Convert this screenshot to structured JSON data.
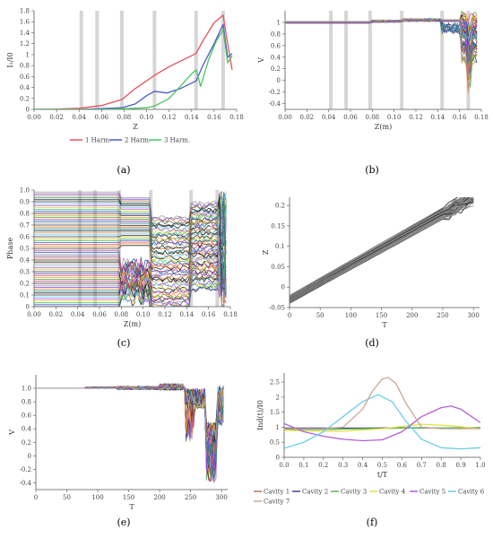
{
  "figure": {
    "panel_labels": [
      "(a)",
      "(b)",
      "(c)",
      "(d)",
      "(e)",
      "(f)"
    ]
  },
  "chart_data": [
    {
      "id": "a",
      "type": "line",
      "xlabel": "Z",
      "ylabel": "I₁/I0",
      "xlim": [
        0,
        0.18
      ],
      "ylim": [
        0,
        1.8
      ],
      "xticks": [
        "0.00",
        "0.02",
        "0.04",
        "0.06",
        "0.08",
        "0.10",
        "0.12",
        "0.14",
        "0.16",
        "0.18"
      ],
      "yticks": [
        "0",
        "0.2",
        "0.4",
        "0.6",
        "0.8",
        "1",
        "1.2",
        "1.4",
        "1.6",
        "1.8"
      ],
      "cavity_bands": [
        0.042,
        0.056,
        0.078,
        0.107,
        0.144,
        0.168
      ],
      "legend_position": "bottom",
      "series": [
        {
          "name": "1 Harm.",
          "color": "#e8505b",
          "x": [
            0,
            0.02,
            0.04,
            0.06,
            0.078,
            0.09,
            0.107,
            0.12,
            0.144,
            0.15,
            0.16,
            0.168,
            0.172,
            0.176
          ],
          "y": [
            0,
            0.005,
            0.02,
            0.07,
            0.18,
            0.38,
            0.62,
            0.78,
            1.02,
            1.25,
            1.58,
            1.72,
            1.2,
            0.72
          ]
        },
        {
          "name": "2 Harm.",
          "color": "#4a5bc9",
          "x": [
            0,
            0.04,
            0.078,
            0.09,
            0.1,
            0.107,
            0.118,
            0.13,
            0.144,
            0.15,
            0.16,
            0.168,
            0.172,
            0.176
          ],
          "y": [
            0,
            0.0,
            0.03,
            0.1,
            0.25,
            0.33,
            0.3,
            0.38,
            0.52,
            0.8,
            1.2,
            1.55,
            0.95,
            1.02
          ]
        },
        {
          "name": "3 Harm.",
          "color": "#49c560",
          "x": [
            0,
            0.06,
            0.078,
            0.1,
            0.107,
            0.12,
            0.13,
            0.14,
            0.144,
            0.148,
            0.155,
            0.162,
            0.168,
            0.172,
            0.176
          ],
          "y": [
            0,
            0.0,
            0.01,
            0.03,
            0.06,
            0.2,
            0.42,
            0.65,
            0.72,
            0.42,
            0.9,
            1.25,
            1.45,
            0.85,
            0.98
          ]
        }
      ]
    },
    {
      "id": "b",
      "type": "line",
      "xlabel": "Z(m)",
      "ylabel": "V",
      "xlim": [
        0,
        0.18
      ],
      "ylim": [
        -0.5,
        1.2
      ],
      "xticks": [
        "0.00",
        "0.02",
        "0.04",
        "0.06",
        "0.08",
        "0.10",
        "0.12",
        "0.14",
        "0.16",
        "0.18"
      ],
      "yticks": [
        "-0.4",
        "-0.2",
        "0",
        "0.2",
        "0.4",
        "0.6",
        "0.8",
        "1"
      ],
      "cavity_bands": [
        0.042,
        0.056,
        0.078,
        0.107,
        0.144,
        0.168
      ],
      "series_count": 60
    },
    {
      "id": "c",
      "type": "line",
      "xlabel": "Z(m)",
      "ylabel": "Phase",
      "xlim": [
        0,
        0.18
      ],
      "ylim": [
        0,
        1.0
      ],
      "xticks": [
        "0.00",
        "0.02",
        "0.04",
        "0.06",
        "0.08",
        "0.10",
        "0.12",
        "0.14",
        "0.16",
        "0.18"
      ],
      "yticks": [
        "0",
        "0.1",
        "0.2",
        "0.3",
        "0.4",
        "0.5",
        "0.6",
        "0.7",
        "0.8",
        "0.9",
        "1.0"
      ],
      "cavity_bands": [
        0.042,
        0.056,
        0.078,
        0.107,
        0.144,
        0.168
      ],
      "series_count": 60
    },
    {
      "id": "d",
      "type": "line",
      "xlabel": "T",
      "ylabel": "Z",
      "xlim": [
        0,
        310
      ],
      "ylim": [
        -0.05,
        0.22
      ],
      "xticks": [
        "0",
        "50",
        "100",
        "150",
        "200",
        "250",
        "300"
      ],
      "yticks": [
        "-0.05",
        "0",
        "0.05",
        "0.1",
        "0.15",
        "0.2"
      ],
      "series_count": 60
    },
    {
      "id": "e",
      "type": "line",
      "xlabel": "T",
      "ylabel": "V",
      "xlim": [
        0,
        310
      ],
      "ylim": [
        -0.5,
        1.2
      ],
      "xticks": [
        "0",
        "50",
        "100",
        "150",
        "200",
        "250",
        "300"
      ],
      "yticks": [
        "-0.4",
        "-0.2",
        "0",
        "0.2",
        "0.4",
        "0.6",
        "0.8",
        "1.0"
      ],
      "series_count": 60
    },
    {
      "id": "f",
      "type": "line",
      "xlabel": "t/T",
      "ylabel": "Ind(t)/I0",
      "xlim": [
        0,
        1.0
      ],
      "ylim": [
        0,
        2.8
      ],
      "xticks": [
        "0.0",
        "0.1",
        "0.2",
        "0.3",
        "0.4",
        "0.5",
        "0.6",
        "0.7",
        "0.8",
        "0.9",
        "1.0"
      ],
      "yticks": [
        "0",
        "0.5",
        "1",
        "1.5",
        "2",
        "2.5"
      ],
      "legend_position": "bottom",
      "series": [
        {
          "name": "Cavity 1",
          "color": "#b8736b",
          "x": [
            0,
            0.2,
            0.4,
            0.6,
            0.8,
            1.0
          ],
          "y": [
            0.95,
            0.95,
            0.96,
            0.97,
            0.97,
            0.98
          ]
        },
        {
          "name": "Cavity 2",
          "color": "#4a3f9a",
          "x": [
            0,
            0.2,
            0.4,
            0.6,
            0.8,
            1.0
          ],
          "y": [
            0.97,
            0.97,
            0.97,
            0.98,
            0.98,
            0.98
          ]
        },
        {
          "name": "Cavity 3",
          "color": "#55b84f",
          "x": [
            0,
            0.2,
            0.4,
            0.6,
            0.8,
            1.0
          ],
          "y": [
            0.92,
            0.93,
            0.95,
            0.97,
            0.98,
            0.99
          ]
        },
        {
          "name": "Cavity 4",
          "color": "#e6e04a",
          "x": [
            0,
            0.1,
            0.3,
            0.5,
            0.7,
            0.85,
            1.0
          ],
          "y": [
            0.9,
            0.88,
            0.87,
            0.95,
            1.1,
            1.05,
            0.95
          ]
        },
        {
          "name": "Cavity 5",
          "color": "#b55fd6",
          "x": [
            0,
            0.1,
            0.2,
            0.3,
            0.4,
            0.5,
            0.6,
            0.7,
            0.8,
            0.85,
            0.9,
            1.0
          ],
          "y": [
            1.12,
            0.85,
            0.7,
            0.6,
            0.55,
            0.58,
            0.85,
            1.35,
            1.65,
            1.7,
            1.6,
            1.15
          ]
        },
        {
          "name": "Cavity 6",
          "color": "#6ccde8",
          "x": [
            0,
            0.1,
            0.2,
            0.3,
            0.4,
            0.48,
            0.55,
            0.62,
            0.7,
            0.8,
            0.9,
            1.0
          ],
          "y": [
            0.3,
            0.5,
            0.85,
            1.35,
            1.85,
            2.08,
            1.85,
            1.2,
            0.6,
            0.32,
            0.28,
            0.32
          ]
        },
        {
          "name": "Cavity 7",
          "color": "#c8a898",
          "x": [
            0,
            0.2,
            0.3,
            0.4,
            0.45,
            0.5,
            0.53,
            0.57,
            0.62,
            0.7,
            0.8,
            1.0
          ],
          "y": [
            0.95,
            0.95,
            1.0,
            1.6,
            2.2,
            2.6,
            2.65,
            2.45,
            1.8,
            1.0,
            0.95,
            0.95
          ]
        }
      ]
    }
  ]
}
